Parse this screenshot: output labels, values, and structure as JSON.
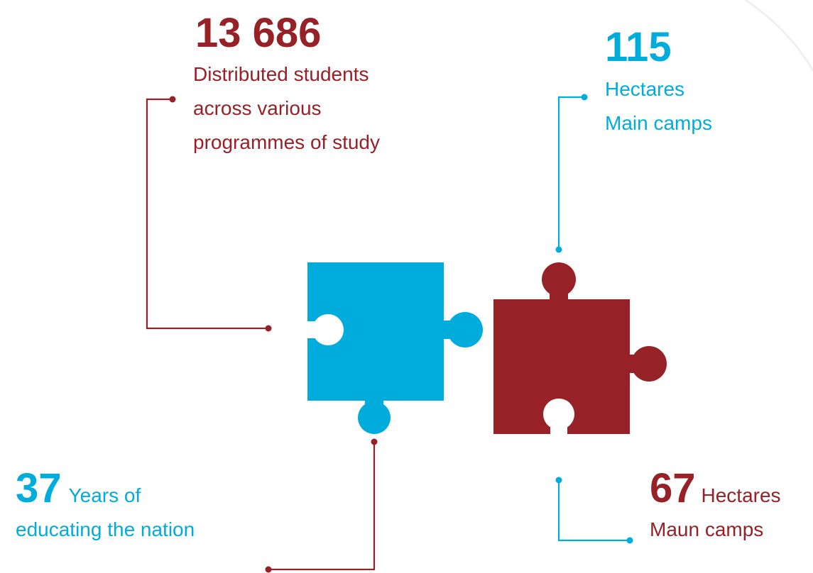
{
  "stats": [
    {
      "value": "13 686",
      "lines": [
        "Distributed students",
        "across various",
        "programmes of study"
      ]
    },
    {
      "value": "115",
      "lines": [
        "Hectares",
        "Main camps"
      ]
    },
    {
      "value": "37",
      "inline": "Years of",
      "lines": [
        "educating the nation"
      ]
    },
    {
      "value": "67",
      "inline": "Hectares",
      "lines": [
        "Maun camps"
      ]
    }
  ]
}
